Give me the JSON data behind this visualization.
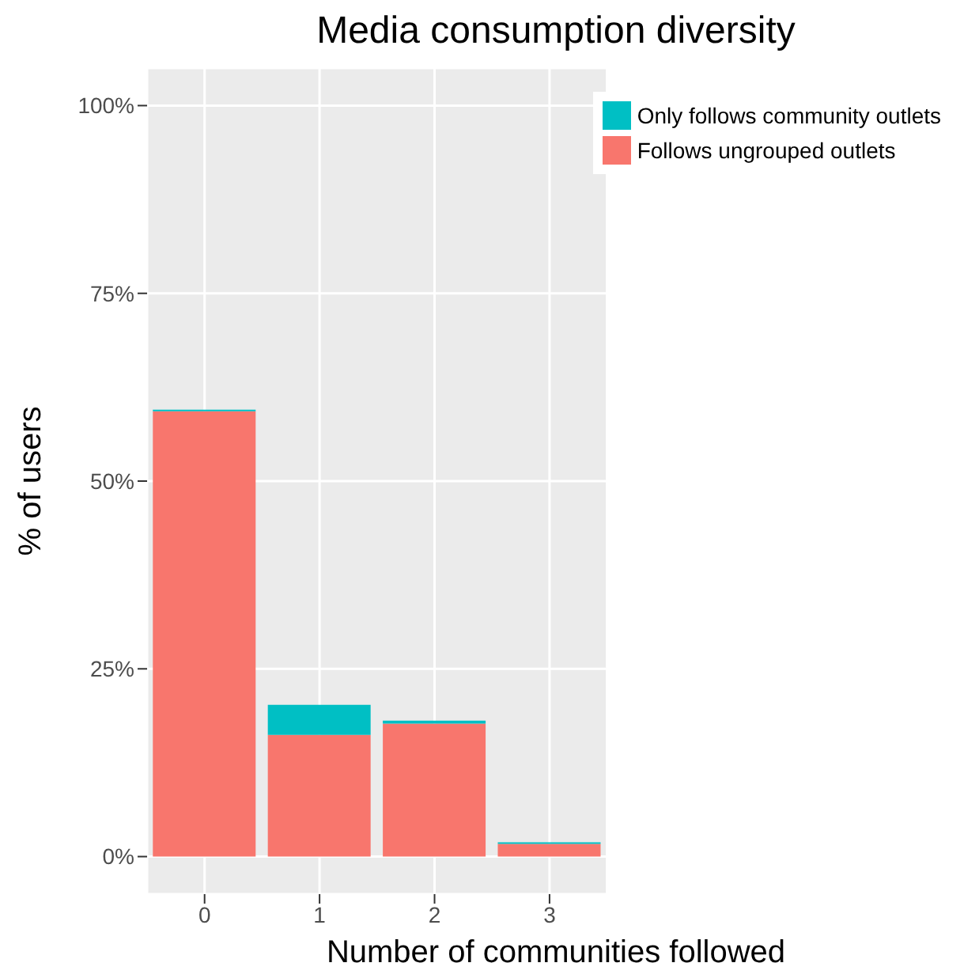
{
  "chart_data": {
    "type": "bar",
    "title": "Media consumption diversity",
    "xlabel": "Number of communities followed",
    "ylabel": "% of users",
    "categories": [
      "0",
      "1",
      "2",
      "3"
    ],
    "stacked": true,
    "series": [
      {
        "name": "Follows ungrouped outlets",
        "color": "#f8766d",
        "values": [
          59.3,
          16.2,
          17.7,
          1.7
        ]
      },
      {
        "name": "Only follows community outlets",
        "color": "#00bfc4",
        "values": [
          0.2,
          4.0,
          0.4,
          0.2
        ]
      }
    ],
    "ylim": [
      -5,
      105
    ],
    "yticks": [
      {
        "value": 0,
        "label": "0%"
      },
      {
        "value": 25,
        "label": "25%"
      },
      {
        "value": 50,
        "label": "50%"
      },
      {
        "value": 75,
        "label": "75%"
      },
      {
        "value": 100,
        "label": "100%"
      }
    ],
    "grid": true,
    "legend": "top right"
  }
}
